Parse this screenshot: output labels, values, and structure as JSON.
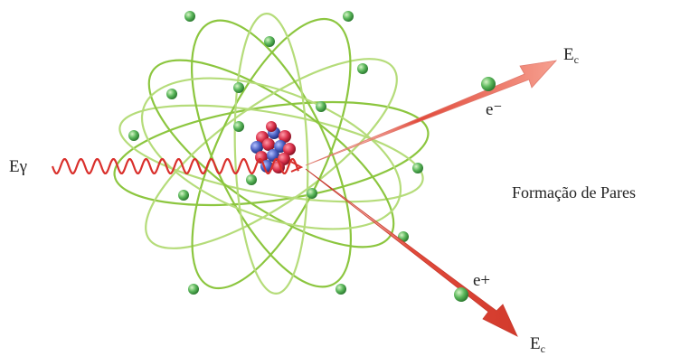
{
  "labels": {
    "photon": "Eγ",
    "electron": "e⁻",
    "positron": "e+",
    "energy_symbol": "E",
    "energy_subscript": "c",
    "caption": "Formação de Pares"
  },
  "colors": {
    "orbit": "#8cc63f",
    "orbit_light": "#b5dc7a",
    "electron_ball": "#4caf50",
    "photon_wave": "#d9302c",
    "arrow": "#e24a3b",
    "arrow_light": "#f4a39a",
    "nucleon_red": "#d9304a",
    "nucleon_blue": "#4a5fc1",
    "text": "#222222"
  }
}
